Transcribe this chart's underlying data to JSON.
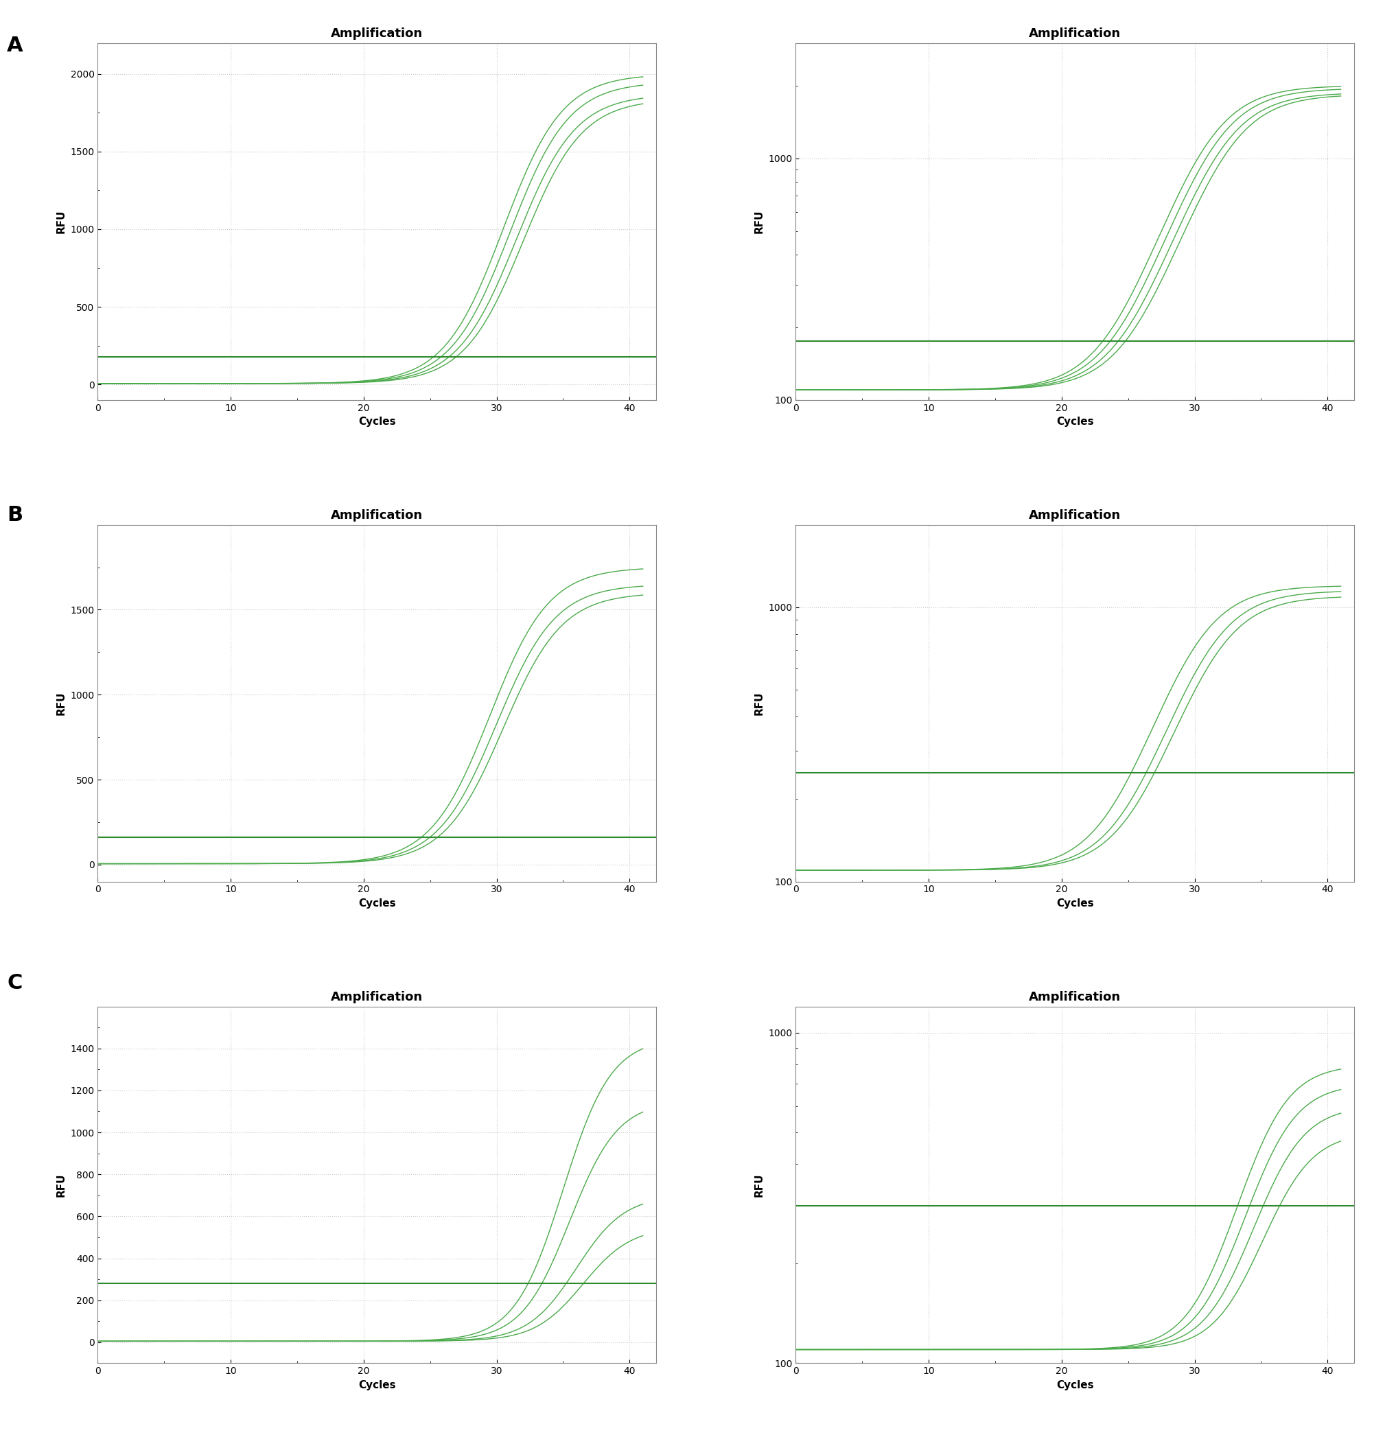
{
  "panels": [
    {
      "label": "A",
      "row": 0,
      "linear": {
        "ylim": [
          -100,
          2200
        ],
        "yticks": [
          0,
          500,
          1000,
          1500,
          2000
        ],
        "threshold": 175,
        "n_curves": 4,
        "midpoints": [
          30.5,
          31.0,
          31.5,
          32.0
        ],
        "rates": [
          0.45,
          0.45,
          0.45,
          0.45
        ],
        "max_vals": [
          2000,
          1950,
          1870,
          1840
        ],
        "baseline": 5
      },
      "log": {
        "ylim_log": [
          100,
          3000
        ],
        "threshold": 175,
        "n_curves": 4,
        "midpoints": [
          30.5,
          31.0,
          31.5,
          32.0
        ],
        "rates": [
          0.45,
          0.45,
          0.45,
          0.45
        ],
        "max_vals": [
          2000,
          1950,
          1870,
          1840
        ],
        "baseline": 110
      }
    },
    {
      "label": "B",
      "row": 1,
      "linear": {
        "ylim": [
          -100,
          2000
        ],
        "yticks": [
          0,
          500,
          1000,
          1500
        ],
        "threshold": 160,
        "n_curves": 3,
        "midpoints": [
          29.5,
          30.0,
          30.5
        ],
        "rates": [
          0.45,
          0.45,
          0.45
        ],
        "max_vals": [
          1750,
          1650,
          1600
        ],
        "baseline": 5
      },
      "log": {
        "ylim_log": [
          100,
          2000
        ],
        "threshold": 250,
        "n_curves": 3,
        "midpoints": [
          29.5,
          30.5,
          31.0
        ],
        "rates": [
          0.45,
          0.45,
          0.45
        ],
        "max_vals": [
          1200,
          1150,
          1100
        ],
        "baseline": 110
      }
    },
    {
      "label": "C",
      "row": 2,
      "linear": {
        "ylim": [
          -100,
          1600
        ],
        "yticks": [
          0,
          200,
          400,
          600,
          800,
          1000,
          1200,
          1400
        ],
        "threshold": 280,
        "n_curves": 4,
        "midpoints": [
          35.0,
          35.5,
          36.0,
          36.5
        ],
        "rates": [
          0.55,
          0.55,
          0.55,
          0.55
        ],
        "max_vals": [
          1450,
          1150,
          700,
          550
        ],
        "baseline": 5
      },
      "log": {
        "ylim_log": [
          100,
          1200
        ],
        "threshold": 300,
        "n_curves": 4,
        "midpoints": [
          35.0,
          35.5,
          36.0,
          36.5
        ],
        "rates": [
          0.55,
          0.55,
          0.55,
          0.55
        ],
        "max_vals": [
          800,
          700,
          600,
          500
        ],
        "baseline": 110
      }
    }
  ],
  "curve_color": "#4aaa4a",
  "threshold_color": "#2d8b2d",
  "grid_color": "#cccccc",
  "bg_color": "#ffffff",
  "xlim": [
    0,
    42
  ],
  "xticks": [
    0,
    10,
    20,
    30,
    40
  ],
  "xlabel": "Cycles",
  "ylabel": "RFU",
  "title": "Amplification",
  "label_fontsize": 22,
  "axis_label_fontsize": 11,
  "title_fontsize": 13,
  "tick_fontsize": 10
}
